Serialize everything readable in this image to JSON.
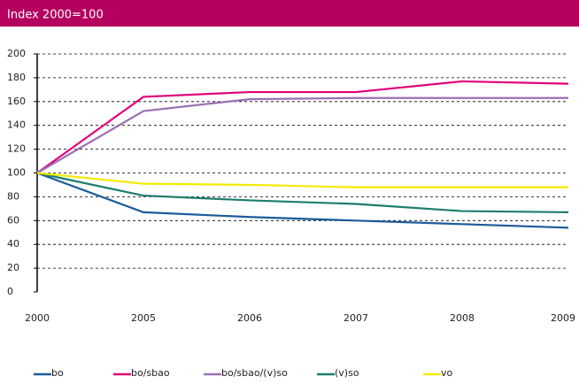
{
  "chart_data": {
    "type": "line",
    "title": "Index 2000=100",
    "categories": [
      "2000",
      "2005",
      "2006",
      "2007",
      "2008",
      "2009"
    ],
    "series": [
      {
        "name": "bo",
        "color": "#1b5b9b",
        "values": [
          100,
          67,
          63,
          60,
          57,
          54
        ]
      },
      {
        "name": "bo/sbao",
        "color": "#e2007a",
        "values": [
          100,
          164,
          168,
          168,
          177,
          175
        ]
      },
      {
        "name": "bo/sbao/(v)so",
        "color": "#9a70b4",
        "values": [
          100,
          152,
          162,
          163,
          163,
          163
        ]
      },
      {
        "name": "(v)so",
        "color": "#1d7d6c",
        "values": [
          100,
          81,
          77,
          74,
          68,
          67
        ]
      },
      {
        "name": "vo",
        "color": "#f4ea00",
        "values": [
          100,
          91,
          90,
          88,
          88,
          88
        ]
      }
    ],
    "ylim": [
      0,
      200
    ],
    "yticks": [
      0,
      20,
      40,
      60,
      80,
      100,
      120,
      140,
      160,
      180,
      200
    ],
    "grid": true
  }
}
